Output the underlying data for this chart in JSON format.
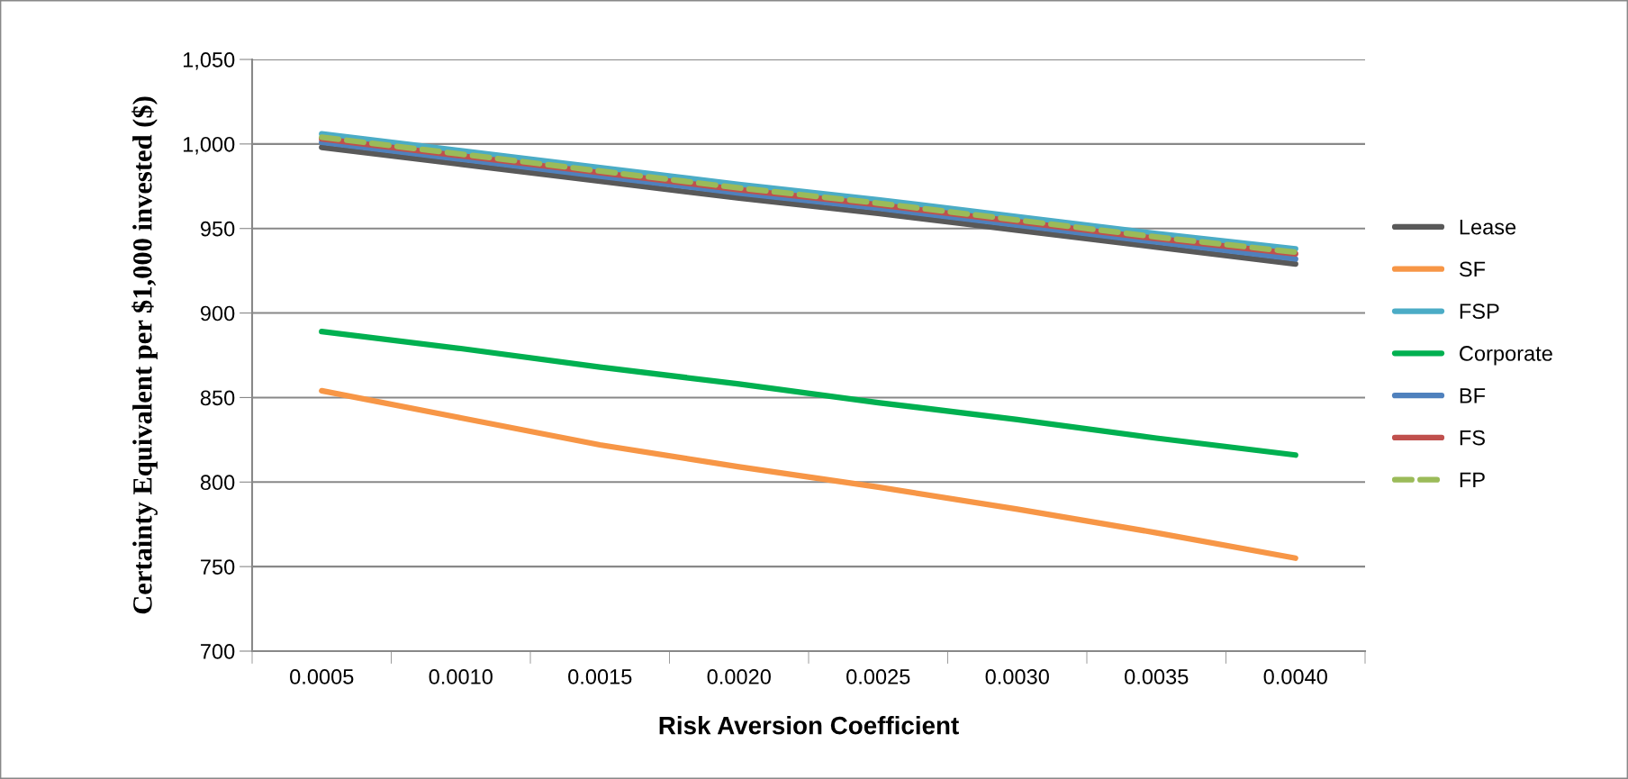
{
  "chart_data": {
    "type": "line",
    "xlabel": "Risk Aversion Coefficient",
    "ylabel": "Certainty Equivalent per $1,000 invested ($)",
    "categories": [
      "0.0005",
      "0.0010",
      "0.0015",
      "0.0020",
      "0.0025",
      "0.0030",
      "0.0035",
      "0.0040"
    ],
    "series": [
      {
        "name": "Lease",
        "color": "#595959",
        "values": [
          998,
          988,
          978,
          968,
          959,
          949,
          939,
          929
        ]
      },
      {
        "name": "SF",
        "color": "#f79646",
        "values": [
          854,
          838,
          822,
          809,
          797,
          784,
          770,
          755
        ]
      },
      {
        "name": "FSP",
        "color": "#4bacc6",
        "values": [
          1006,
          996,
          986,
          976,
          967,
          957,
          947,
          938
        ]
      },
      {
        "name": "Corporate",
        "color": "#00b050",
        "values": [
          889,
          879,
          868,
          858,
          847,
          837,
          826,
          816
        ]
      },
      {
        "name": "BF",
        "color": "#4f81bd",
        "values": [
          1001,
          991,
          981,
          971,
          962,
          952,
          942,
          932
        ]
      },
      {
        "name": "FS",
        "color": "#c0504d",
        "values": [
          1003,
          993,
          983,
          973,
          964,
          954,
          944,
          935
        ]
      },
      {
        "name": "FP",
        "color": "#9bbb59",
        "line_style": "dashed",
        "values": [
          1004,
          994,
          984,
          974,
          965,
          955,
          945,
          936
        ]
      }
    ],
    "ylim": [
      700,
      1050
    ],
    "yticks": [
      700,
      750,
      800,
      850,
      900,
      950,
      {
        "value": 1000,
        "label": "1,000"
      },
      {
        "value": 1050,
        "label": "1,050"
      }
    ],
    "grid": "y",
    "legend": "right",
    "marker": "none"
  }
}
